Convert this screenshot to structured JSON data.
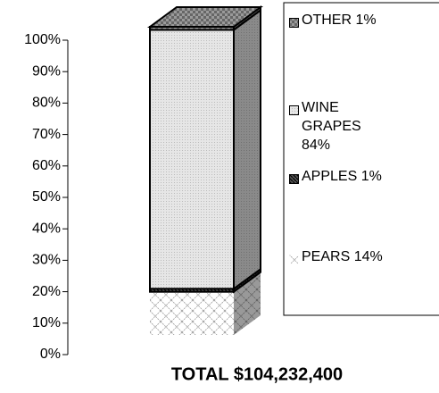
{
  "chart_data": {
    "type": "bar3d_stacked",
    "categories": [
      "TOTAL $104,232,400"
    ],
    "series": [
      {
        "name": "PEARS 14%",
        "color": "#ffffff",
        "values": [
          14
        ]
      },
      {
        "name": "APPLES 1%",
        "color": "#555555",
        "values": [
          1
        ]
      },
      {
        "name": "WINE GRAPES 84%",
        "color": "#e6e6e6",
        "values": [
          84
        ]
      },
      {
        "name": "OTHER 1%",
        "color": "#9a9a9a",
        "values": [
          1
        ]
      }
    ],
    "ylim": [
      0,
      100
    ],
    "yticks": [
      {
        "value": 0,
        "label": "0%"
      },
      {
        "value": 10,
        "label": "10%"
      },
      {
        "value": 20,
        "label": "20%"
      },
      {
        "value": 30,
        "label": "30%"
      },
      {
        "value": 40,
        "label": "40%"
      },
      {
        "value": 50,
        "label": "50%"
      },
      {
        "value": 60,
        "label": "60%"
      },
      {
        "value": 70,
        "label": "70%"
      },
      {
        "value": 80,
        "label": "80%"
      },
      {
        "value": 90,
        "label": "90%"
      },
      {
        "value": 100,
        "label": "100%"
      }
    ],
    "legend": "right"
  }
}
